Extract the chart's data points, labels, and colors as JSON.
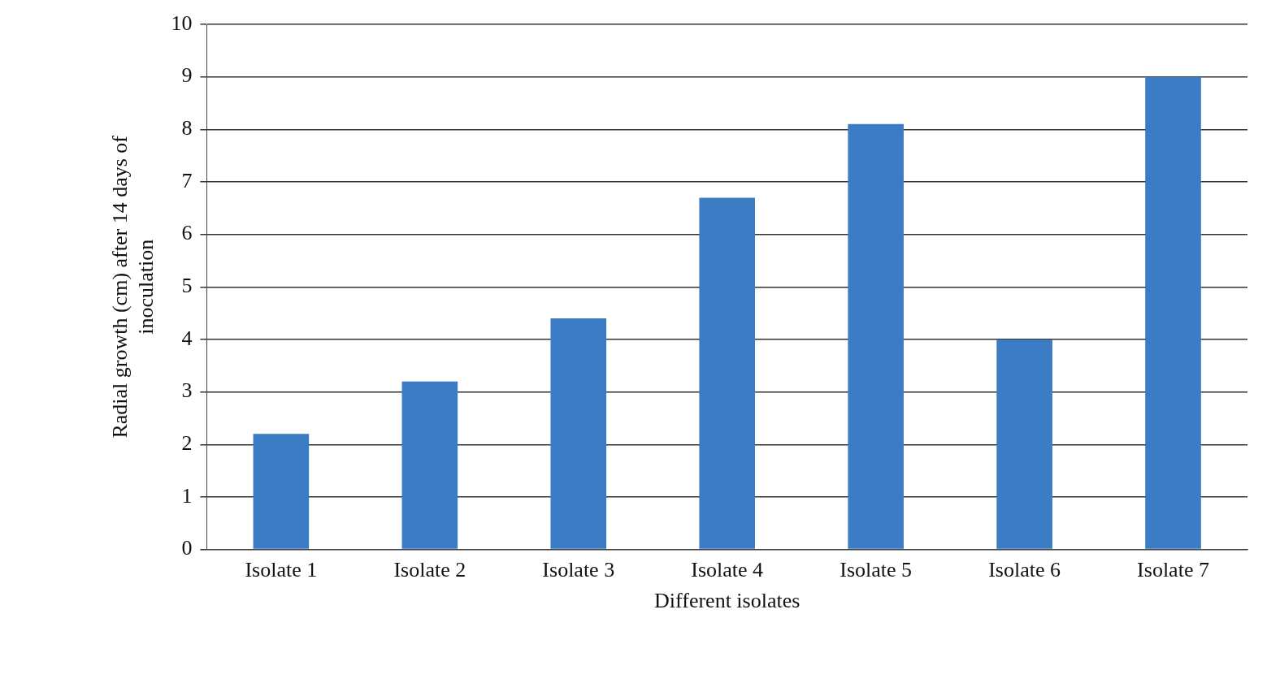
{
  "chart_data": {
    "type": "bar",
    "xlabel": "Different isolates",
    "ylabel": "Radial growth (cm) after 14 days of inoculation",
    "categories": [
      "Isolate 1",
      "Isolate 2",
      "Isolate 3",
      "Isolate 4",
      "Isolate 5",
      "Isolate 6",
      "Isolate 7"
    ],
    "values": [
      2.2,
      3.2,
      4.4,
      6.7,
      8.1,
      4.0,
      9.0
    ],
    "color": "#3b7cc4",
    "ylim": [
      0,
      10
    ],
    "yticks": [
      0,
      1,
      2,
      3,
      4,
      5,
      6,
      7,
      8,
      9,
      10
    ],
    "grid": "y",
    "legend": false
  }
}
